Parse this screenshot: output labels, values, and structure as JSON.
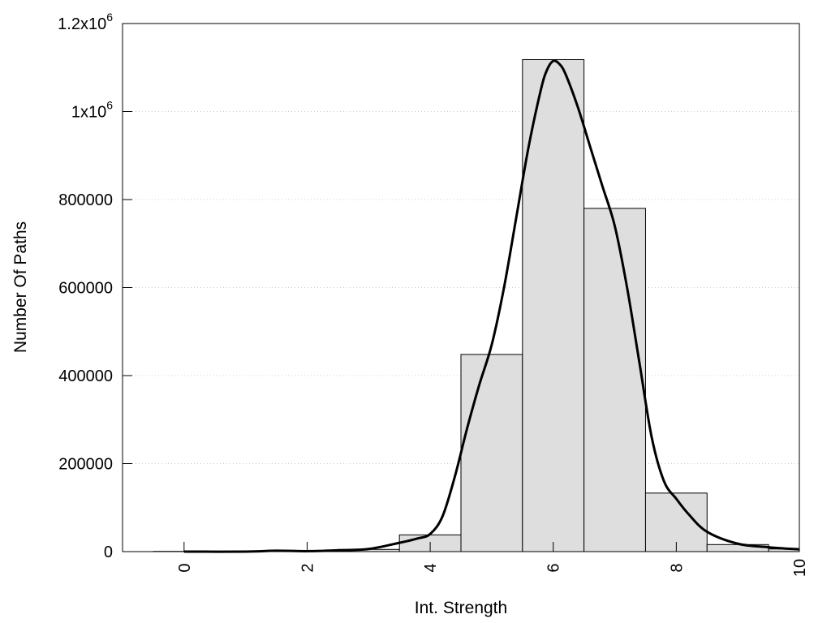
{
  "chart_data": {
    "type": "bar",
    "xlabel": "Int. Strength",
    "ylabel": "Number Of Paths",
    "xlim": [
      -1,
      10
    ],
    "ylim": [
      0,
      1200000
    ],
    "grid": "horizontal dotted",
    "x_ticks": [
      {
        "value": 0,
        "label": "0"
      },
      {
        "value": 2,
        "label": "2"
      },
      {
        "value": 4,
        "label": "4"
      },
      {
        "value": 6,
        "label": "6"
      },
      {
        "value": 8,
        "label": "8"
      },
      {
        "value": 10,
        "label": "10"
      }
    ],
    "y_ticks": [
      {
        "value": 0,
        "label": "0",
        "exp": ""
      },
      {
        "value": 200000,
        "label": "200000",
        "exp": ""
      },
      {
        "value": 400000,
        "label": "400000",
        "exp": ""
      },
      {
        "value": 600000,
        "label": "600000",
        "exp": ""
      },
      {
        "value": 800000,
        "label": "800000",
        "exp": ""
      },
      {
        "value": 1000000,
        "label": "1x10",
        "exp": "6"
      },
      {
        "value": 1200000,
        "label": "1.2x10",
        "exp": "6"
      }
    ],
    "bin_width": 1,
    "bars": [
      {
        "x": 0,
        "value": 500
      },
      {
        "x": 1,
        "value": 1000
      },
      {
        "x": 2,
        "value": 2000
      },
      {
        "x": 3,
        "value": 5000
      },
      {
        "x": 4,
        "value": 38000
      },
      {
        "x": 5,
        "value": 448000
      },
      {
        "x": 6,
        "value": 1118000
      },
      {
        "x": 7,
        "value": 780000
      },
      {
        "x": 8,
        "value": 133000
      },
      {
        "x": 9,
        "value": 16000
      },
      {
        "x": 10,
        "value": 6000
      }
    ],
    "curve": {
      "x": [
        0,
        1,
        1.5,
        2,
        2.5,
        3,
        3.5,
        3.8,
        4,
        4.2,
        4.4,
        4.6,
        4.8,
        5,
        5.2,
        5.4,
        5.6,
        5.8,
        5.9,
        6,
        6.1,
        6.2,
        6.4,
        6.6,
        6.8,
        7,
        7.2,
        7.4,
        7.6,
        7.8,
        8,
        8.2,
        8.5,
        9,
        9.5,
        10
      ],
      "y": [
        0,
        0,
        2000,
        1000,
        3000,
        6000,
        20000,
        30000,
        40000,
        80000,
        170000,
        280000,
        380000,
        470000,
        600000,
        760000,
        920000,
        1050000,
        1095000,
        1115000,
        1108000,
        1085000,
        1010000,
        920000,
        830000,
        740000,
        600000,
        430000,
        260000,
        160000,
        120000,
        85000,
        45000,
        18000,
        10000,
        5000
      ]
    }
  }
}
